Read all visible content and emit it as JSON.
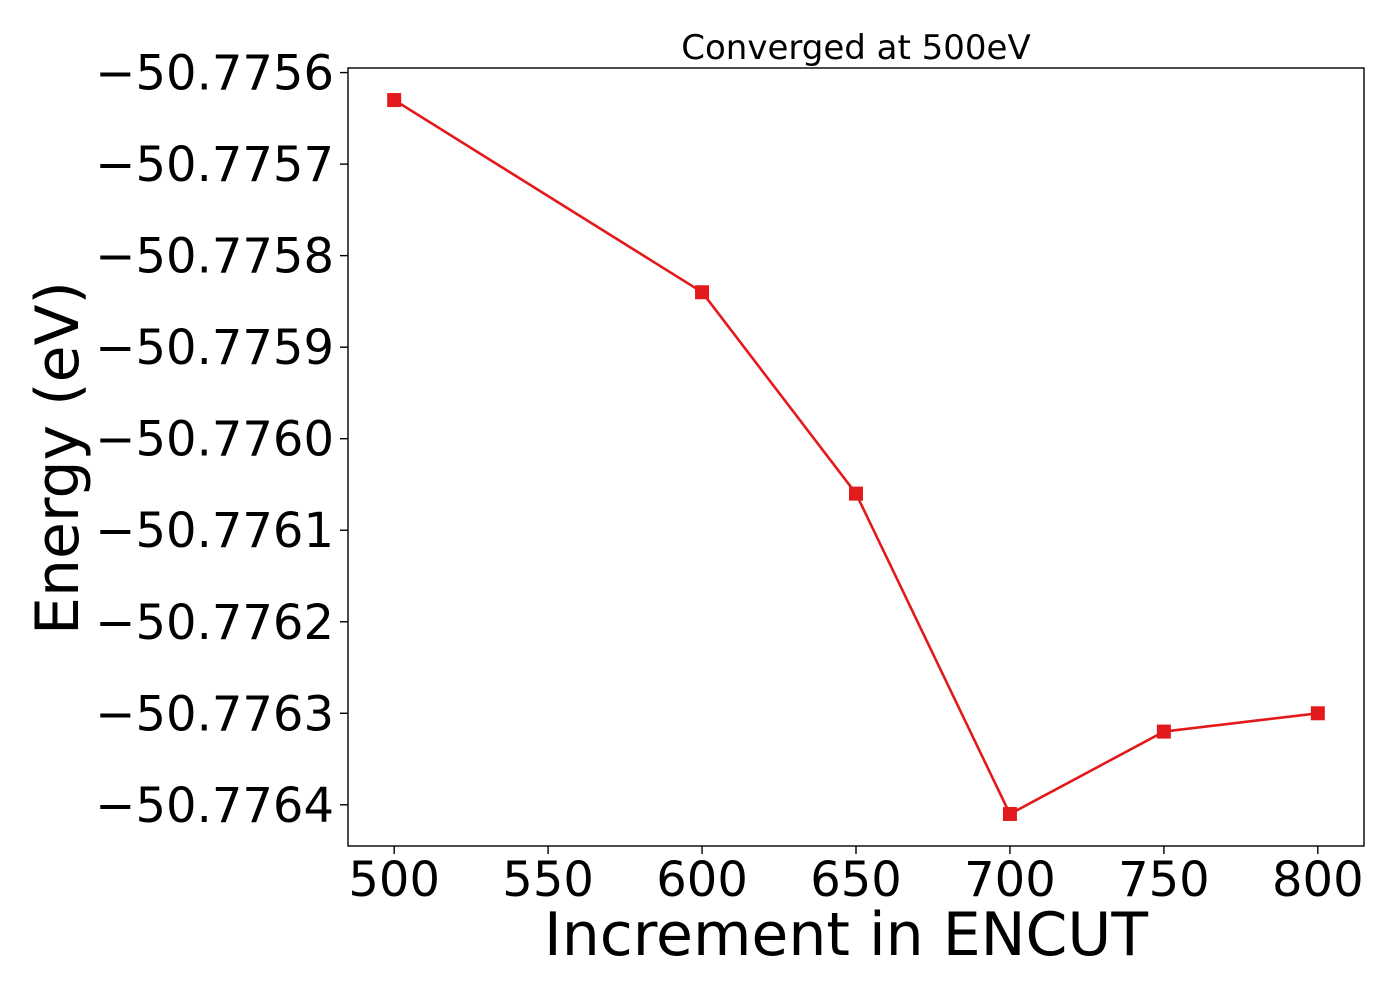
{
  "chart_data": {
    "type": "line",
    "title": "Converged at 500eV",
    "xlabel": "Increment in ENCUT",
    "ylabel": "Energy (eV)",
    "x": [
      500,
      600,
      650,
      700,
      750,
      800
    ],
    "series": [
      {
        "values": [
          -50.77563,
          -50.77584,
          -50.77606,
          -50.77641,
          -50.77632,
          -50.7763
        ],
        "color": "#e31a1c",
        "marker": "square"
      }
    ],
    "xticks": [
      500,
      550,
      600,
      650,
      700,
      750,
      800
    ],
    "xtick_labels": [
      "500",
      "550",
      "600",
      "650",
      "700",
      "750",
      "800"
    ],
    "yticks": [
      -50.7756,
      -50.7757,
      -50.7758,
      -50.7759,
      -50.776,
      -50.7761,
      -50.7762,
      -50.7763,
      -50.7764
    ],
    "ytick_labels": [
      "−50.7756",
      "−50.7757",
      "−50.7758",
      "−50.7759",
      "−50.7760",
      "−50.7761",
      "−50.7762",
      "−50.7763",
      "−50.7764"
    ],
    "xlim": [
      485,
      815
    ],
    "ylim": [
      -50.776445,
      -50.775595
    ],
    "grid": false,
    "legend": false
  }
}
